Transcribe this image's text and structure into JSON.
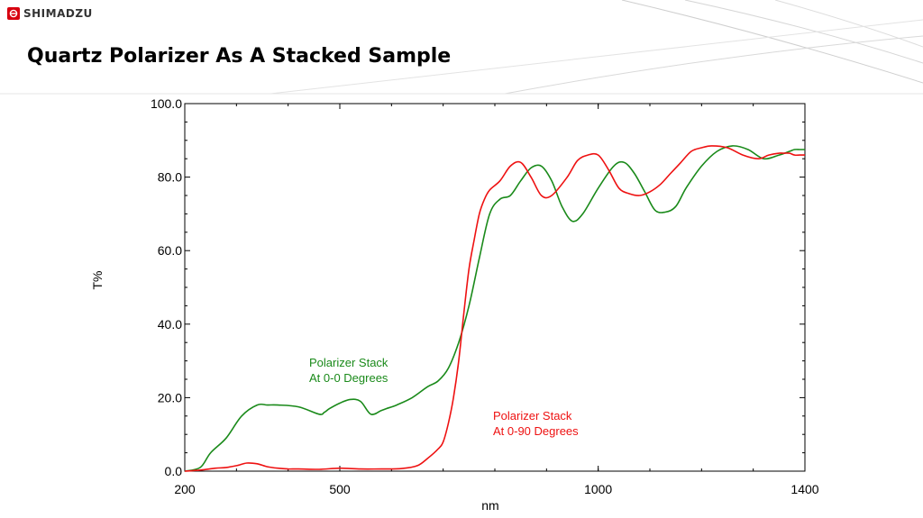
{
  "header": {
    "brand": "SHIMADZU",
    "title": "Quartz Polarizer As A Stacked Sample"
  },
  "colors": {
    "brand_red": "#d7000f",
    "series_0_0": "#1a8a1a",
    "series_0_90": "#ee1111"
  },
  "chart_data": {
    "type": "line",
    "title": "",
    "xlabel": "nm",
    "ylabel": "T%",
    "xlim": [
      200,
      1400
    ],
    "ylim": [
      0,
      100
    ],
    "x_ticks": [
      "200",
      "500",
      "1000",
      "1400"
    ],
    "y_ticks": [
      "0.0",
      "20.0",
      "40.0",
      "60.0",
      "80.0",
      "100.0"
    ],
    "grid": false,
    "annotations": [
      {
        "series": "Polarizer Stack At 0-0 Degrees",
        "lines": [
          "Polarizer Stack",
          "At 0-0 Degrees"
        ]
      },
      {
        "series": "Polarizer Stack At 0-90 Degrees",
        "lines": [
          "Polarizer Stack",
          "At 0-90 Degrees"
        ]
      }
    ],
    "series": [
      {
        "name": "Polarizer Stack At 0-0 Degrees",
        "color": "#1a8a1a",
        "x": [
          200,
          230,
          250,
          280,
          310,
          340,
          360,
          380,
          420,
          460,
          470,
          480,
          500,
          520,
          540,
          560,
          580,
          590,
          610,
          640,
          670,
          690,
          710,
          730,
          750,
          770,
          790,
          810,
          830,
          850,
          870,
          890,
          910,
          930,
          950,
          970,
          1000,
          1030,
          1050,
          1070,
          1090,
          1110,
          1130,
          1150,
          1170,
          1200,
          1230,
          1260,
          1290,
          1320,
          1350,
          1370,
          1380,
          1390,
          1400
        ],
        "y": [
          0,
          1,
          5,
          9,
          15,
          18,
          18,
          18,
          17.5,
          15.5,
          16,
          17,
          18.5,
          19.5,
          19,
          15.5,
          16.5,
          17,
          18,
          20,
          23,
          24.5,
          28,
          35,
          45,
          58,
          70,
          74,
          75,
          79,
          82.5,
          83,
          79,
          72,
          68,
          70,
          77,
          83,
          84,
          81,
          76,
          71,
          70.5,
          72,
          77,
          83,
          87,
          88.5,
          87.5,
          85,
          86,
          87,
          87.5,
          87.5,
          87.5
        ]
      },
      {
        "name": "Polarizer Stack At 0-90 Degrees",
        "color": "#ee1111",
        "x": [
          200,
          230,
          260,
          280,
          300,
          320,
          340,
          360,
          380,
          400,
          420,
          460,
          500,
          540,
          580,
          620,
          650,
          670,
          690,
          700,
          710,
          720,
          730,
          740,
          750,
          760,
          770,
          780,
          790,
          810,
          830,
          850,
          870,
          890,
          910,
          940,
          960,
          980,
          1000,
          1020,
          1040,
          1060,
          1080,
          1100,
          1120,
          1140,
          1160,
          1180,
          1200,
          1220,
          1250,
          1280,
          1310,
          1330,
          1350,
          1360,
          1370,
          1380,
          1390,
          1400
        ],
        "y": [
          0,
          0.3,
          0.8,
          1,
          1.5,
          2.2,
          2,
          1.2,
          0.8,
          0.6,
          0.6,
          0.5,
          0.8,
          0.6,
          0.6,
          0.7,
          1.5,
          3.5,
          6,
          8,
          13,
          20,
          30,
          43,
          55,
          63,
          70,
          74,
          76.5,
          79,
          83,
          84,
          80,
          75,
          75,
          80,
          84.5,
          86,
          86,
          82,
          77,
          75.5,
          75,
          76,
          78,
          81,
          84,
          87,
          88,
          88.5,
          88,
          86,
          85,
          86,
          86.5,
          86.5,
          86.5,
          86,
          86,
          86
        ]
      }
    ]
  }
}
